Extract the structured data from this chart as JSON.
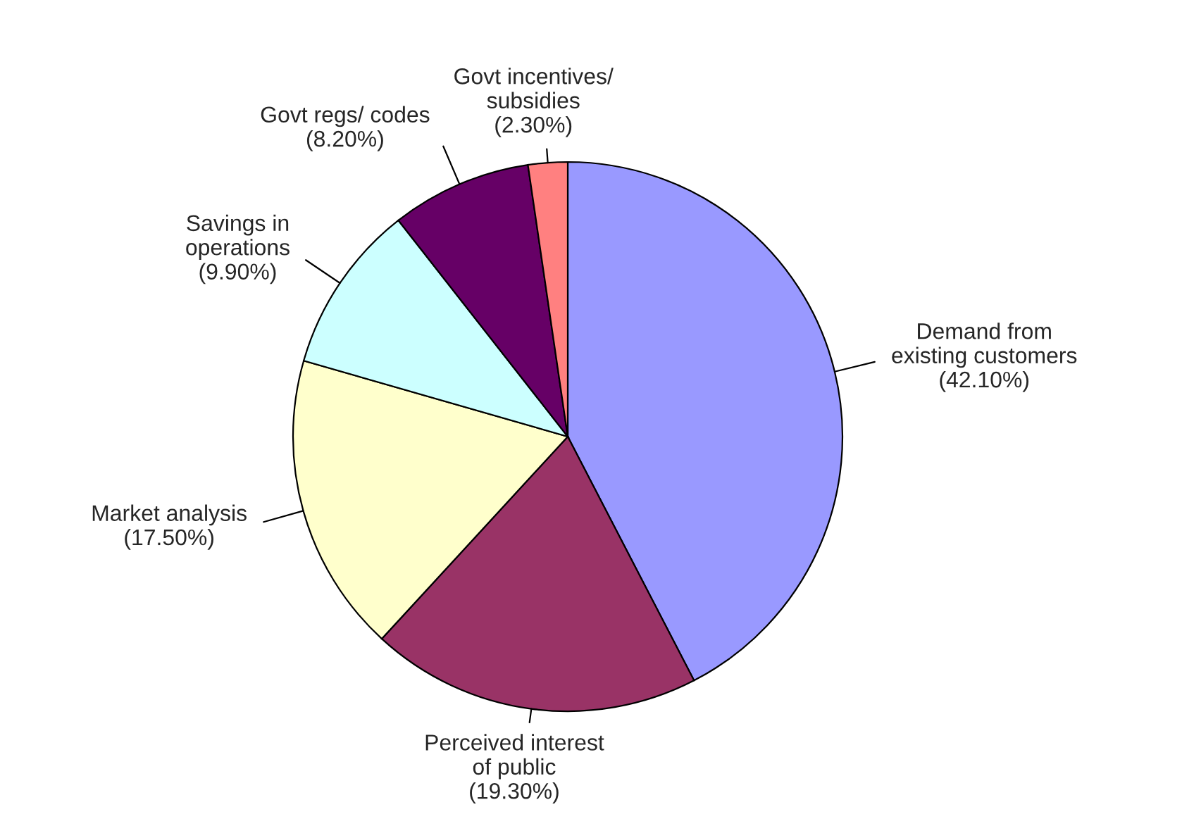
{
  "chart_data": {
    "type": "pie",
    "categories": [
      "Demand from\nexisting customers",
      "Perceived interest\nof public",
      "Market analysis",
      "Savings in\noperations",
      "Govt regs/ codes",
      "Govt incentives/\nsubsidies"
    ],
    "values": [
      42.1,
      19.3,
      17.5,
      9.9,
      8.2,
      2.3
    ],
    "value_labels": [
      "(42.10%)",
      "(19.30%)",
      "(17.50%)",
      "(9.90%)",
      "(8.20%)",
      "(2.30%)"
    ],
    "colors": [
      "#9999ff",
      "#993366",
      "#ffffcc",
      "#ccffff",
      "#660066",
      "#ff8080"
    ],
    "legend": false
  }
}
